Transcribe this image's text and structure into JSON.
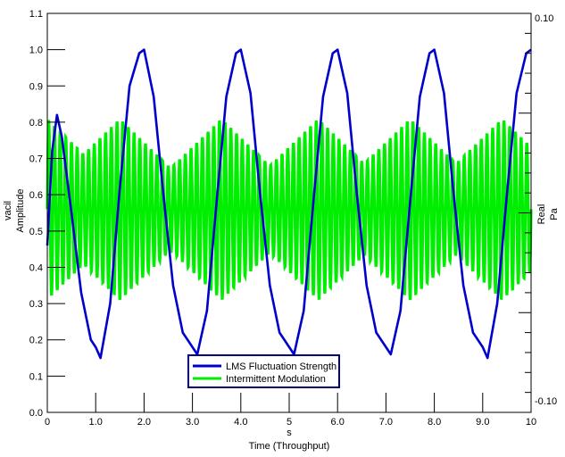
{
  "chart_data": {
    "type": "line",
    "xlabel_unit": "s",
    "xlabel": "Time (Throughput)",
    "ylabel_left_unit": "vacil",
    "ylabel_left": "Amplitude",
    "ylabel_right_name": "Real",
    "ylabel_right_unit": "Pa",
    "xlim": [
      0,
      10
    ],
    "ylim_left": [
      0,
      1.1
    ],
    "ylim_right": [
      -0.1,
      0.1
    ],
    "x_ticks": [
      "0",
      "1.0",
      "2.0",
      "3.0",
      "4.0",
      "5",
      "6.0",
      "7.0",
      "8.0",
      "9.0",
      "10"
    ],
    "y_ticks_left": [
      "0.0",
      "0.1",
      "0.2",
      "0.3",
      "0.4",
      "0.5",
      "0.6",
      "0.7",
      "0.8",
      "0.9",
      "1.0",
      "1.1"
    ],
    "y_ticks_right": [
      "0.10",
      "-0.10"
    ],
    "grid": false,
    "legend_position": "bottom-center",
    "series": [
      {
        "name": "LMS Fluctuation Strength",
        "color": "#0000cc",
        "axis": "left",
        "x": [
          0,
          0.1,
          0.2,
          0.3,
          0.5,
          0.7,
          0.9,
          1.0,
          1.1,
          1.3,
          1.5,
          1.7,
          1.9,
          2.0,
          2.2,
          2.4,
          2.6,
          2.8,
          3.0,
          3.1,
          3.3,
          3.5,
          3.7,
          3.9,
          4.0,
          4.2,
          4.4,
          4.6,
          4.8,
          5.0,
          5.1,
          5.3,
          5.5,
          5.7,
          5.9,
          6.0,
          6.2,
          6.4,
          6.6,
          6.8,
          7.0,
          7.1,
          7.3,
          7.5,
          7.7,
          7.9,
          8.0,
          8.2,
          8.4,
          8.6,
          8.8,
          9.0,
          9.1,
          9.3,
          9.5,
          9.7,
          9.9,
          10.0
        ],
        "y": [
          0.46,
          0.72,
          0.82,
          0.76,
          0.55,
          0.33,
          0.2,
          0.18,
          0.15,
          0.3,
          0.62,
          0.9,
          0.99,
          1.0,
          0.87,
          0.6,
          0.35,
          0.22,
          0.18,
          0.16,
          0.28,
          0.58,
          0.87,
          0.99,
          1.0,
          0.88,
          0.6,
          0.35,
          0.22,
          0.18,
          0.16,
          0.28,
          0.58,
          0.87,
          0.99,
          1.0,
          0.88,
          0.6,
          0.35,
          0.22,
          0.18,
          0.16,
          0.28,
          0.58,
          0.87,
          0.99,
          1.0,
          0.88,
          0.6,
          0.35,
          0.22,
          0.18,
          0.15,
          0.3,
          0.6,
          0.88,
          0.99,
          1.0
        ]
      },
      {
        "name": "Intermittent Modulation",
        "color": "#00ee00",
        "axis": "left",
        "waveform": "amplitude-modulated oscillation",
        "center": 0.56,
        "amplitude_min": 0.12,
        "amplitude_max": 0.25,
        "oscillations_per_unit_x": 8.5,
        "envelope_peaks_x": [
          0,
          1.5,
          3.6,
          5.6,
          7.5,
          9.4
        ]
      }
    ]
  }
}
